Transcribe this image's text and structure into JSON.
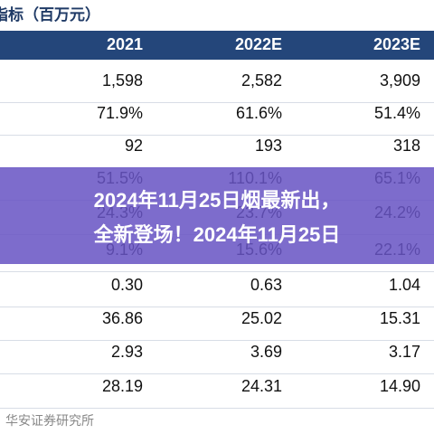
{
  "header": {
    "title": "指标（百万元）"
  },
  "table": {
    "columns": [
      "2021",
      "2022E",
      "2023E"
    ],
    "rows": [
      [
        "1,598",
        "2,582",
        "3,909"
      ],
      [
        "71.9%",
        "61.6%",
        "51.4%"
      ],
      [
        "92",
        "193",
        "318"
      ],
      [
        "51.5%",
        "110.1%",
        "65.1%"
      ],
      [
        "24.3%",
        "23.7%",
        "24.2%"
      ],
      [
        "9.1%",
        "15.6%",
        "22.1%"
      ],
      [
        "0.30",
        "0.63",
        "1.04"
      ],
      [
        "36.86",
        "25.02",
        "15.31"
      ],
      [
        "2.93",
        "3.69",
        "3.17"
      ],
      [
        "28.19",
        "24.31",
        "14.90"
      ]
    ]
  },
  "footer": {
    "source": "华安证券研究所"
  },
  "overlay": {
    "lines": [
      "2024年11月25日烟最新出，",
      "全新登场！2024年11月25日"
    ]
  }
}
